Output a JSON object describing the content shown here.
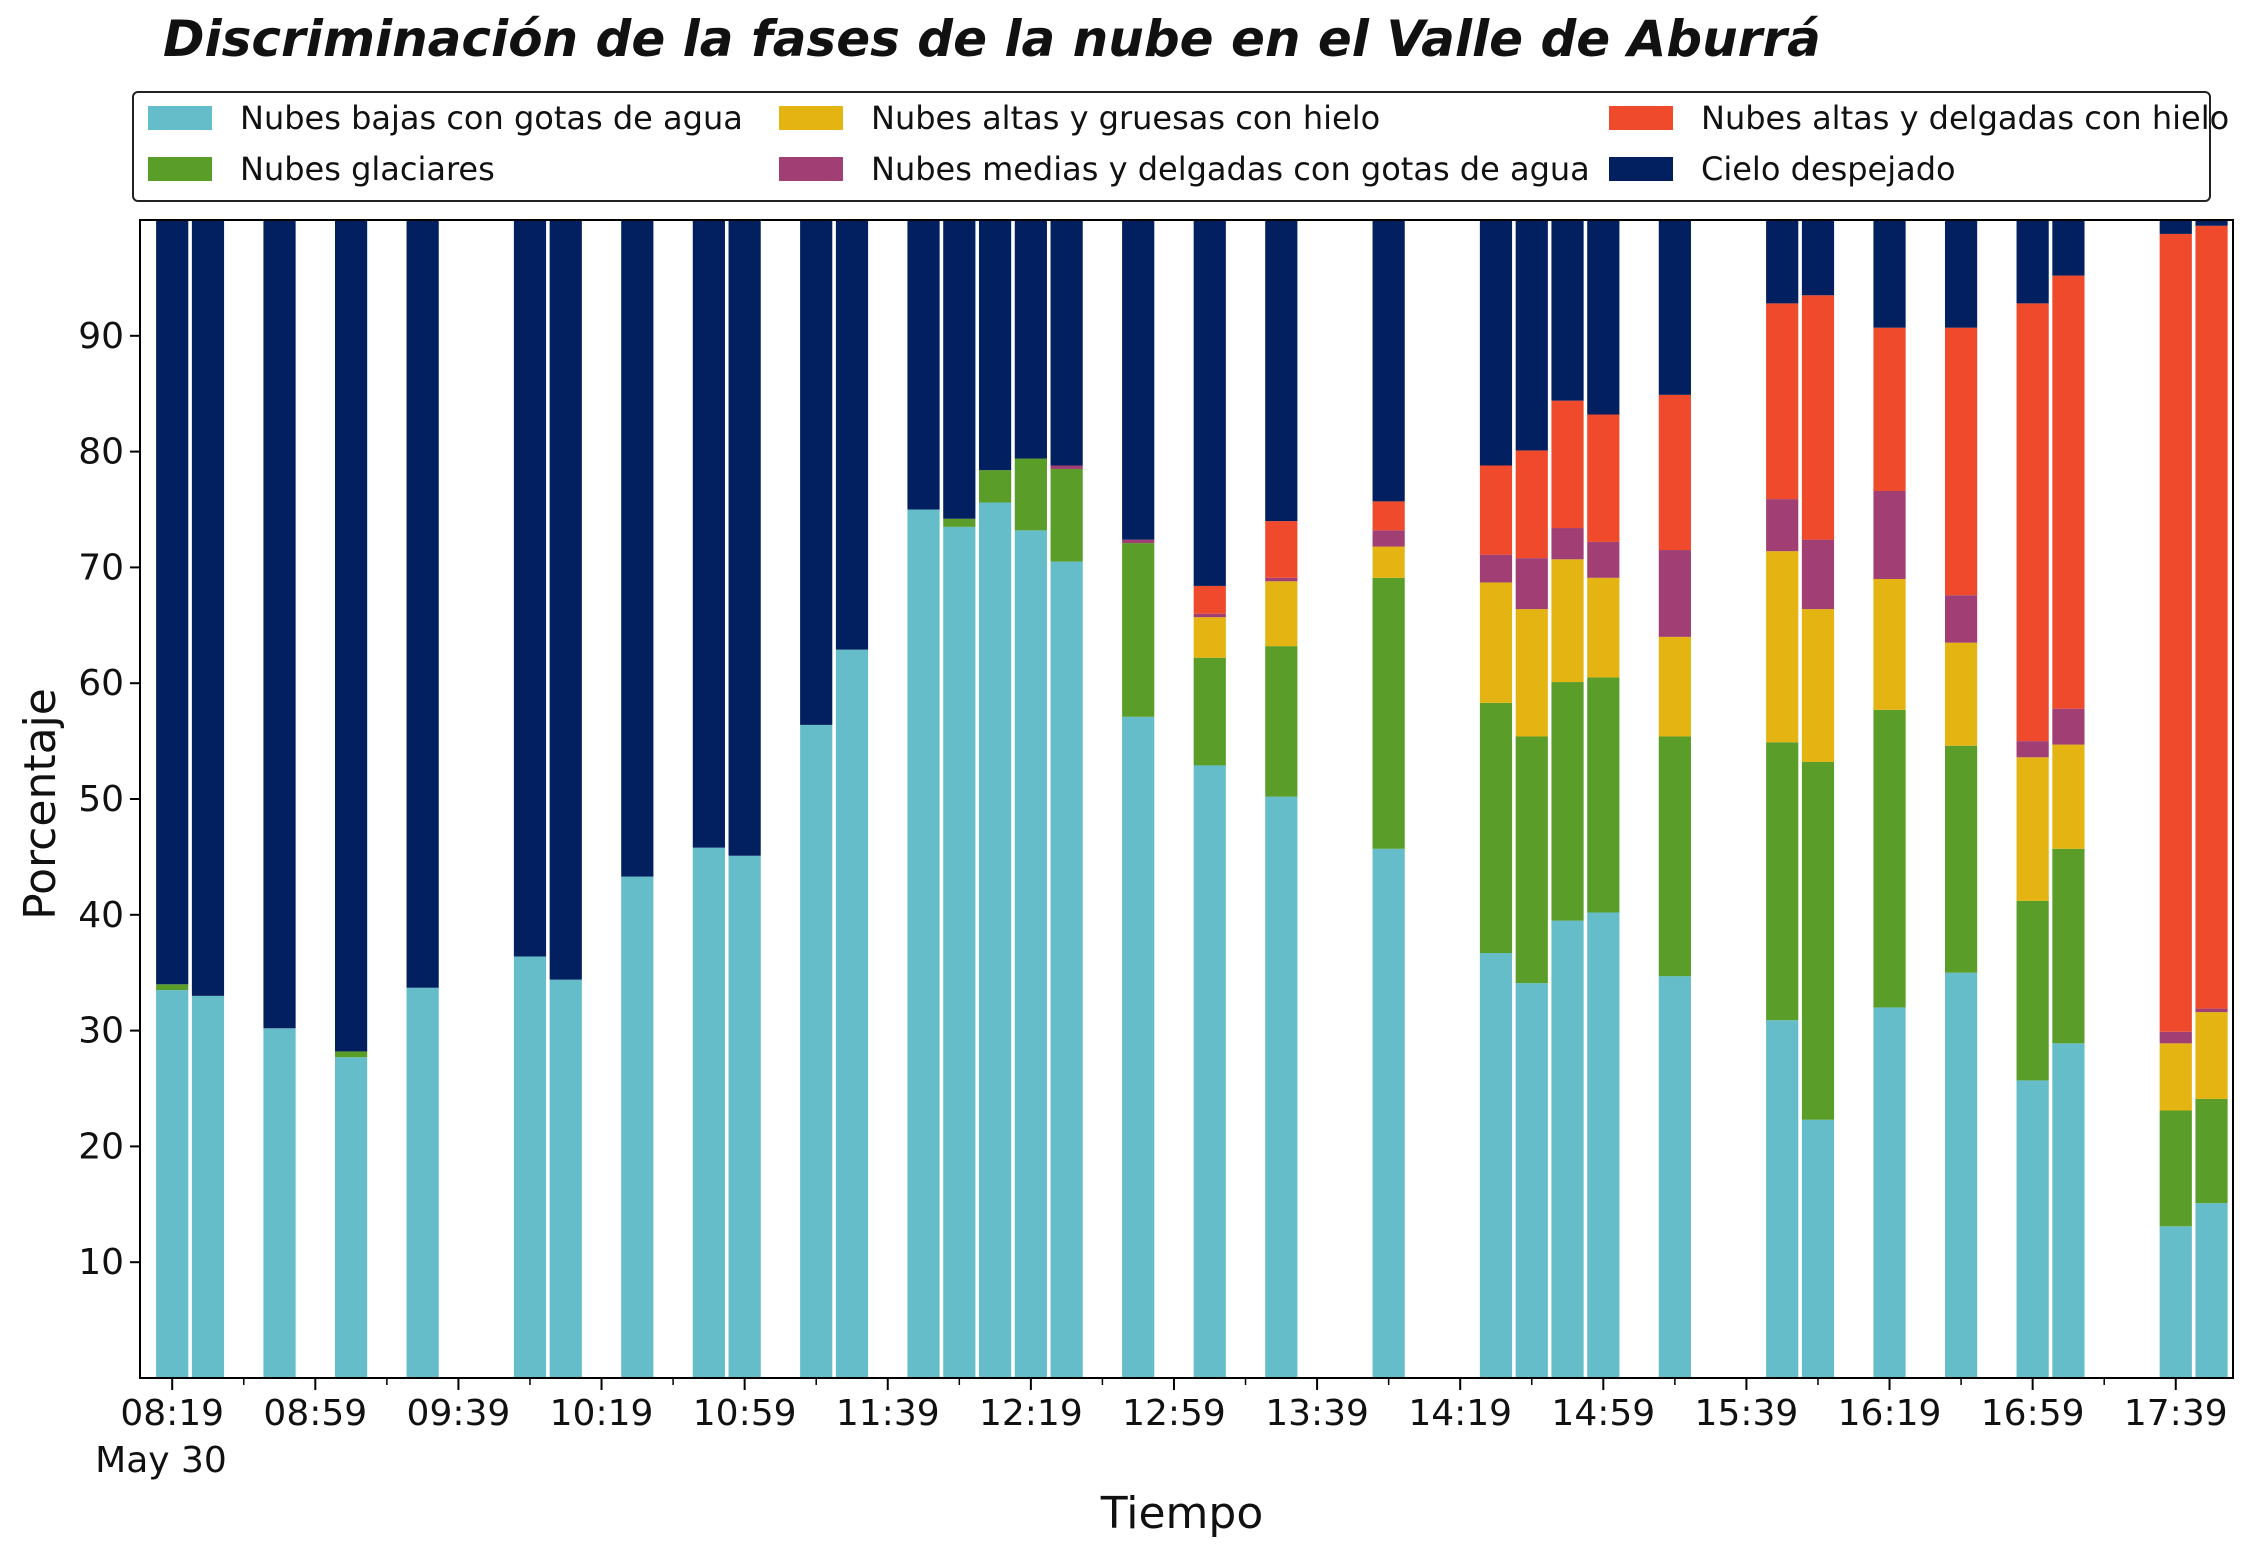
{
  "chart_data": {
    "type": "bar",
    "stacked": true,
    "title": "Discriminación de la fases de la nube en el Valle de Aburrá",
    "xlabel": "Tiempo",
    "ylabel": "Porcentaje",
    "ylim": [
      0,
      100
    ],
    "yticks": [
      10,
      20,
      30,
      40,
      50,
      60,
      70,
      80,
      90
    ],
    "xlim": [
      "08:10",
      "17:55"
    ],
    "date_label": "May 30",
    "legend_position": "top",
    "x": [
      "08:19",
      "08:29",
      "08:49",
      "09:09",
      "09:29",
      "09:59",
      "10:09",
      "10:29",
      "10:49",
      "10:59",
      "11:19",
      "11:29",
      "11:49",
      "11:59",
      "12:09",
      "12:19",
      "12:29",
      "12:49",
      "13:09",
      "13:29",
      "13:59",
      "14:29",
      "14:39",
      "14:49",
      "14:59",
      "15:19",
      "15:49",
      "15:59",
      "16:19",
      "16:39",
      "16:59",
      "17:09",
      "17:39",
      "17:49"
    ],
    "xticks": [
      "08:19",
      "08:59",
      "09:39",
      "10:19",
      "10:59",
      "11:39",
      "12:19",
      "12:59",
      "13:39",
      "14:19",
      "14:59",
      "15:39",
      "16:19",
      "16:59",
      "17:39"
    ],
    "series": [
      {
        "name": "Nubes bajas con gotas de agua",
        "color": "#64BDC9",
        "values": [
          33.5,
          33.0,
          30.2,
          27.7,
          33.7,
          36.4,
          34.4,
          43.3,
          45.8,
          45.1,
          56.4,
          62.9,
          75.0,
          73.5,
          75.6,
          73.2,
          70.5,
          57.1,
          52.9,
          50.2,
          45.7,
          36.7,
          34.1,
          39.5,
          40.2,
          34.7,
          30.9,
          22.3,
          32.0,
          35.0,
          25.7,
          28.9,
          13.1,
          15.1
        ]
      },
      {
        "name": "Nubes glaciares",
        "color": "#5A9E29",
        "values": [
          0.5,
          0,
          0,
          0.5,
          0,
          0,
          0,
          0,
          0,
          0,
          0,
          0,
          0,
          0.7,
          2.8,
          6.2,
          8.0,
          15.0,
          9.3,
          13.0,
          23.4,
          21.6,
          21.3,
          20.6,
          20.3,
          20.7,
          24.0,
          30.9,
          25.7,
          19.6,
          15.5,
          16.8,
          10.0,
          9.0
        ]
      },
      {
        "name": "Nubes altas y gruesas con hielo",
        "color": "#E3B412",
        "values": [
          0,
          0,
          0,
          0,
          0,
          0,
          0,
          0,
          0,
          0,
          0,
          0,
          0,
          0,
          0,
          0,
          0,
          0,
          3.5,
          5.6,
          2.7,
          10.4,
          11.0,
          10.6,
          8.6,
          8.6,
          16.5,
          13.2,
          11.3,
          8.9,
          12.4,
          9.0,
          5.8,
          7.5
        ]
      },
      {
        "name": "Nubes medias y delgadas con gotas de agua",
        "color": "#A13F74",
        "values": [
          0,
          0,
          0,
          0,
          0,
          0,
          0,
          0,
          0,
          0,
          0,
          0,
          0,
          0,
          0,
          0,
          0.3,
          0.3,
          0.3,
          0.3,
          1.4,
          2.4,
          4.4,
          2.7,
          3.1,
          7.5,
          4.5,
          6.0,
          7.6,
          4.1,
          1.4,
          3.1,
          1.0,
          0.3
        ]
      },
      {
        "name": "Nubes altas y delgadas con hielo",
        "color": "#EE4A2B",
        "values": [
          0,
          0,
          0,
          0,
          0,
          0,
          0,
          0,
          0,
          0,
          0,
          0,
          0,
          0,
          0,
          0,
          0,
          0,
          2.4,
          4.9,
          2.5,
          7.7,
          9.3,
          11.0,
          11.0,
          13.4,
          16.9,
          21.1,
          14.1,
          23.1,
          37.8,
          37.4,
          68.9,
          67.6
        ]
      },
      {
        "name": "Cielo despejado",
        "color": "#02205F",
        "values": [
          66.0,
          67.0,
          69.8,
          71.8,
          66.3,
          63.6,
          65.6,
          56.7,
          54.2,
          54.9,
          43.6,
          37.1,
          25.0,
          25.8,
          21.6,
          20.6,
          21.2,
          27.6,
          31.6,
          26.0,
          24.3,
          21.2,
          19.9,
          15.6,
          16.8,
          15.1,
          7.2,
          6.5,
          9.3,
          9.3,
          7.2,
          4.8,
          1.2,
          0.5
        ]
      }
    ]
  }
}
